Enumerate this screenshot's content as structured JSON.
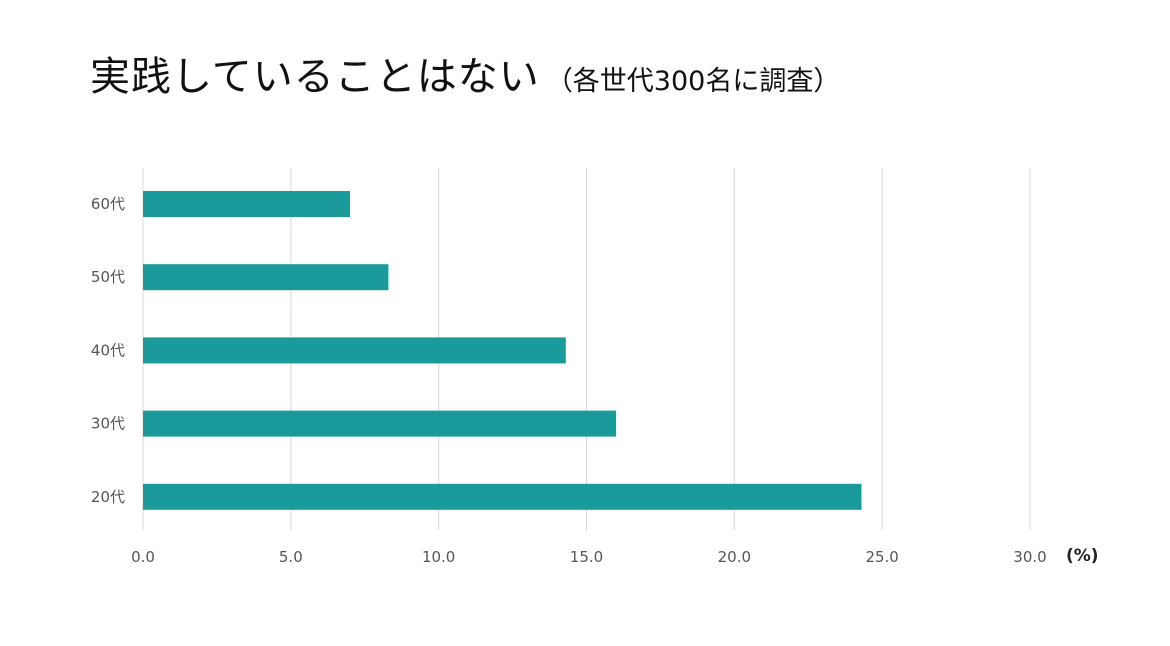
{
  "title": {
    "main": "実践していることはない",
    "sub": "（各世代300名に調査）"
  },
  "chart_data": {
    "type": "bar",
    "orientation": "horizontal",
    "categories": [
      "60代",
      "50代",
      "40代",
      "30代",
      "20代"
    ],
    "values": [
      7.0,
      8.3,
      14.3,
      16.0,
      24.3
    ],
    "xlim": [
      0,
      30
    ],
    "xticks": [
      0,
      5,
      10,
      15,
      20,
      25,
      30
    ],
    "tick_labels": [
      "0.0",
      "5.0",
      "10.0",
      "15.0",
      "20.0",
      "25.0",
      "30.0"
    ],
    "unit": "(%)",
    "grid": true,
    "bar_color": "#1a9a9a",
    "grid_color": "#d8d8d8"
  }
}
